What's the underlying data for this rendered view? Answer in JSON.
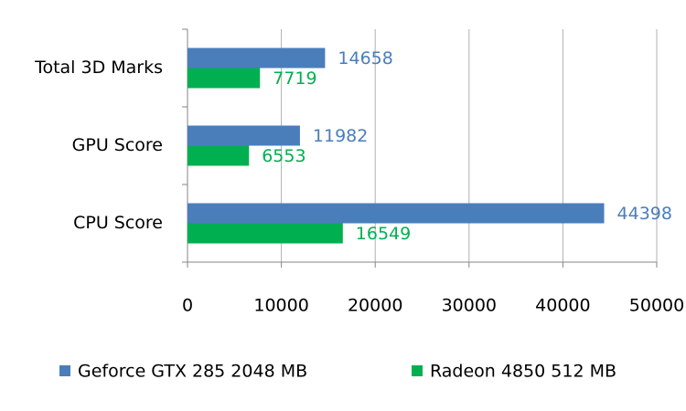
{
  "chart_data": {
    "type": "bar",
    "orientation": "horizontal",
    "categories": [
      "Total 3D Marks",
      "GPU Score",
      "CPU Score"
    ],
    "series": [
      {
        "name": "Geforce GTX 285 2048 MB",
        "color": "#4a7ebb",
        "values": [
          14658,
          11982,
          44398
        ]
      },
      {
        "name": "Radeon 4850 512 MB",
        "color": "#00b050",
        "values": [
          7719,
          6553,
          16549
        ]
      }
    ],
    "xlim": [
      0,
      50000
    ],
    "xticks": [
      0,
      10000,
      20000,
      30000,
      40000,
      50000
    ],
    "grid": true,
    "legend": "bottom"
  }
}
